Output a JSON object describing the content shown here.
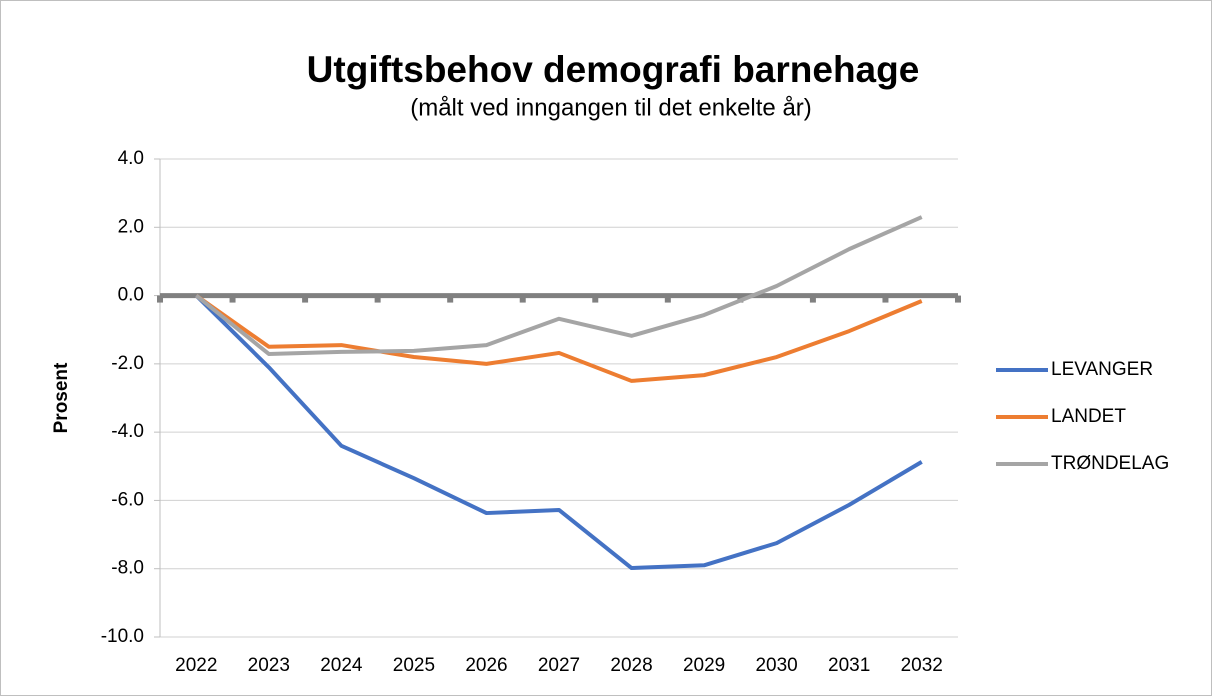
{
  "chart_data": {
    "type": "line",
    "title": "Utgiftsbehov demografi barnehage",
    "subtitle": "(målt ved inngangen til det enkelte år)",
    "y_label": "Prosent",
    "categories": [
      "2022",
      "2023",
      "2024",
      "2025",
      "2026",
      "2027",
      "2028",
      "2029",
      "2030",
      "2031",
      "2032"
    ],
    "series": [
      {
        "name": "LEVANGER",
        "color": "#4472c4",
        "values": [
          0,
          -2.1,
          -4.4,
          -5.35,
          -6.37,
          -6.28,
          -7.98,
          -7.9,
          -7.25,
          -6.13,
          -4.87
        ]
      },
      {
        "name": "LANDET",
        "color": "#ed7d31",
        "values": [
          0,
          -1.5,
          -1.45,
          -1.8,
          -2.0,
          -1.68,
          -2.5,
          -2.33,
          -1.8,
          -1.04,
          -0.16
        ]
      },
      {
        "name": "TRØNDELAG",
        "color": "#a5a5a5",
        "values": [
          0,
          -1.71,
          -1.65,
          -1.62,
          -1.45,
          -0.68,
          -1.18,
          -0.57,
          0.28,
          1.36,
          2.3
        ]
      }
    ],
    "ylim": [
      -10,
      4
    ],
    "yticks": [
      {
        "value": -10,
        "label": "-10.0"
      },
      {
        "value": -8,
        "label": "-8.0"
      },
      {
        "value": -6,
        "label": "-6.0"
      },
      {
        "value": -4,
        "label": "-4.0"
      },
      {
        "value": -2,
        "label": "-2.0"
      },
      {
        "value": 0,
        "label": "0.0"
      },
      {
        "value": 2,
        "label": "2.0"
      },
      {
        "value": 4,
        "label": "4.0"
      }
    ],
    "grid": true,
    "legend": "right"
  }
}
